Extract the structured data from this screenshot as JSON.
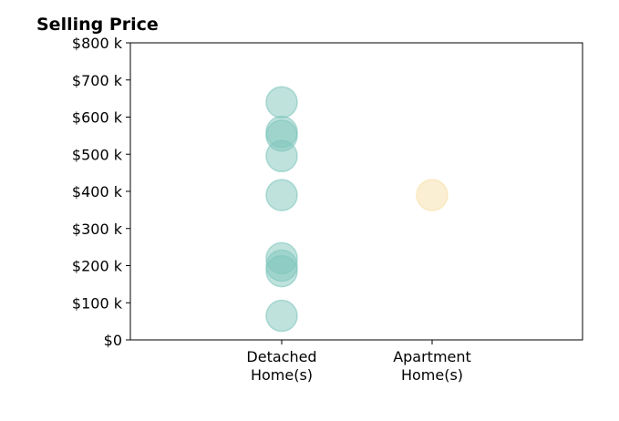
{
  "chart_data": {
    "type": "scatter",
    "title": "Selling Price",
    "xlabel": "",
    "ylabel": "",
    "categories": [
      [
        "Detached",
        "Home(s)"
      ],
      [
        "Apartment",
        "Home(s)"
      ]
    ],
    "y_ticks": [
      "$0",
      "$100 k",
      "$200 k",
      "$300 k",
      "$400 k",
      "$500 k",
      "$600 k",
      "$700 k",
      "$800 k"
    ],
    "ylim": [
      0,
      800000
    ],
    "grid": false,
    "series": [
      {
        "category": 0,
        "color": "#7fc6bc",
        "values": [
          640000,
          560000,
          550000,
          495000,
          390000,
          220000,
          200000,
          185000,
          65000
        ]
      },
      {
        "category": 1,
        "color": "#f7dfa8",
        "values": [
          390000
        ]
      }
    ]
  }
}
